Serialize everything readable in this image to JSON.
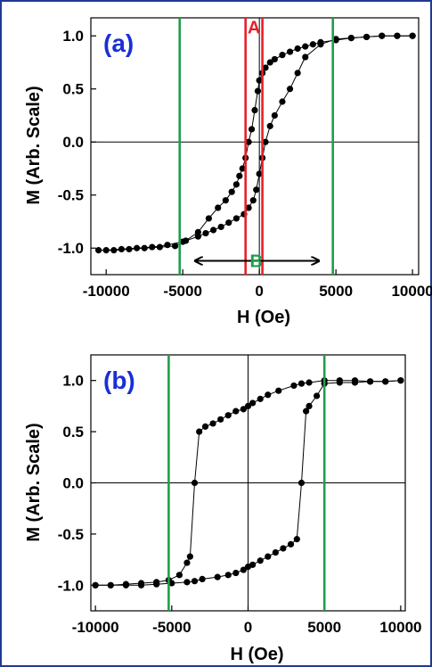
{
  "colors": {
    "panel_label": "#1a2fd6",
    "marker_a": "#e8202a",
    "marker_b": "#1f9e4b",
    "frame": "#1f3a93",
    "data": "#000000"
  },
  "chart_data": [
    {
      "type": "scatter",
      "panel_label": "(a)",
      "xlabel": "H (Oe)",
      "ylabel": "M (Arb. Scale)",
      "xlim": [
        -11000,
        10400
      ],
      "ylim": [
        -1.25,
        1.17
      ],
      "xticks": [
        -10000,
        -5000,
        0,
        5000,
        10000
      ],
      "xtick_labels": [
        "-10000",
        "-5000",
        "0",
        "5000",
        "10000"
      ],
      "yticks": [
        1.0,
        0.5,
        0.0,
        -0.5,
        -1.0
      ],
      "ytick_labels": [
        "1.0",
        "0.5",
        "0.0",
        "-0.5",
        "-1.0"
      ],
      "grid": false,
      "zero_lines": true,
      "vlines": [
        {
          "x": -900,
          "color": "#e8202a"
        },
        {
          "x": 200,
          "color": "#e8202a"
        },
        {
          "x": -5200,
          "color": "#1f9e4b"
        },
        {
          "x": 4800,
          "color": "#1f9e4b"
        }
      ],
      "annotations": [
        {
          "text": "A",
          "x": -350,
          "y": 1.08,
          "color": "#e8202a"
        },
        {
          "text": "B",
          "x": -200,
          "y": -1.12,
          "color": "#1f9e4b"
        }
      ],
      "arrow": {
        "x_from": -4200,
        "x_to": 3900,
        "y": -1.12
      },
      "series": [
        {
          "x": [
            -10500,
            -9500,
            -8500,
            -7500,
            -6500,
            -5500,
            -4800,
            -4000,
            -3300,
            -2700,
            -2200,
            -1800,
            -1500,
            -1300,
            -1100,
            -900,
            -700,
            -500,
            -300,
            -100,
            0,
            200,
            400,
            700,
            1000,
            1500,
            2000,
            2500,
            3000,
            3500,
            4000,
            5000,
            6000,
            7000,
            8000,
            9000,
            10000
          ],
          "y": [
            -1.02,
            -1.02,
            -1.01,
            -1.0,
            -0.99,
            -0.98,
            -0.93,
            -0.85,
            -0.72,
            -0.62,
            -0.55,
            -0.47,
            -0.4,
            -0.32,
            -0.25,
            -0.15,
            0.0,
            0.12,
            0.3,
            0.48,
            0.58,
            0.65,
            0.7,
            0.75,
            0.78,
            0.82,
            0.85,
            0.88,
            0.9,
            0.92,
            0.94,
            0.96,
            0.98,
            0.99,
            1.0,
            1.0,
            1.0
          ]
        },
        {
          "x": [
            10000,
            9000,
            8000,
            7000,
            6000,
            5000,
            4000,
            3000,
            2500,
            2000,
            1500,
            1000,
            700,
            400,
            200,
            0,
            -200,
            -400,
            -700,
            -1000,
            -1500,
            -2000,
            -2500,
            -3000,
            -3500,
            -4000,
            -5000,
            -6000,
            -7000,
            -8000,
            -9000,
            -10000
          ],
          "y": [
            1.0,
            1.0,
            1.0,
            0.99,
            0.98,
            0.97,
            0.92,
            0.8,
            0.65,
            0.5,
            0.38,
            0.25,
            0.15,
            0.0,
            -0.15,
            -0.3,
            -0.45,
            -0.55,
            -0.62,
            -0.68,
            -0.72,
            -0.76,
            -0.8,
            -0.83,
            -0.86,
            -0.89,
            -0.94,
            -0.97,
            -0.99,
            -1.0,
            -1.01,
            -1.02
          ]
        }
      ]
    },
    {
      "type": "scatter",
      "panel_label": "(b)",
      "xlabel": "H (Oe)",
      "ylabel": "M (Arb. Scale)",
      "xlim": [
        -10300,
        10300
      ],
      "ylim": [
        -1.25,
        1.25
      ],
      "xticks": [
        -10000,
        -5000,
        0,
        5000,
        10000
      ],
      "xtick_labels": [
        "-10000",
        "-5000",
        "0",
        "5000",
        "10000"
      ],
      "yticks": [
        1.0,
        0.5,
        0.0,
        -0.5,
        -1.0
      ],
      "ytick_labels": [
        "1.0",
        "0.5",
        "0.0",
        "-0.5",
        "-1.0"
      ],
      "grid": false,
      "zero_lines": true,
      "vlines": [
        {
          "x": -5200,
          "color": "#1f9e4b"
        },
        {
          "x": 5000,
          "color": "#1f9e4b"
        }
      ],
      "annotations": [],
      "series": [
        {
          "x": [
            -10000,
            -9000,
            -8000,
            -7000,
            -6000,
            -5200,
            -4500,
            -4000,
            -3800,
            -3500,
            -3200,
            -2800,
            -2300,
            -1800,
            -1300,
            -800,
            -300,
            0,
            300,
            800,
            1300,
            2000,
            3000,
            3500,
            4000,
            5000,
            6000,
            7000,
            8000,
            9000,
            10000
          ],
          "y": [
            -1.0,
            -1.0,
            -0.99,
            -0.98,
            -0.97,
            -0.95,
            -0.9,
            -0.78,
            -0.72,
            0.0,
            0.5,
            0.55,
            0.58,
            0.62,
            0.66,
            0.7,
            0.72,
            0.75,
            0.78,
            0.82,
            0.86,
            0.9,
            0.95,
            0.97,
            0.98,
            1.0,
            1.0,
            1.0,
            0.99,
            0.99,
            1.0
          ]
        },
        {
          "x": [
            10000,
            9000,
            8000,
            7000,
            6000,
            5000,
            4500,
            4000,
            3800,
            3500,
            3200,
            2800,
            2300,
            1800,
            1300,
            800,
            300,
            0,
            -300,
            -800,
            -1300,
            -2000,
            -3000,
            -3500,
            -4000,
            -5000,
            -6000,
            -7000,
            -8000,
            -9000,
            -10000
          ],
          "y": [
            1.0,
            0.99,
            0.99,
            0.98,
            0.98,
            0.97,
            0.85,
            0.75,
            0.7,
            0.0,
            -0.55,
            -0.6,
            -0.64,
            -0.68,
            -0.72,
            -0.76,
            -0.8,
            -0.82,
            -0.85,
            -0.88,
            -0.9,
            -0.92,
            -0.94,
            -0.96,
            -0.97,
            -0.98,
            -0.99,
            -1.0,
            -1.0,
            -1.0,
            -1.0
          ]
        }
      ]
    }
  ]
}
